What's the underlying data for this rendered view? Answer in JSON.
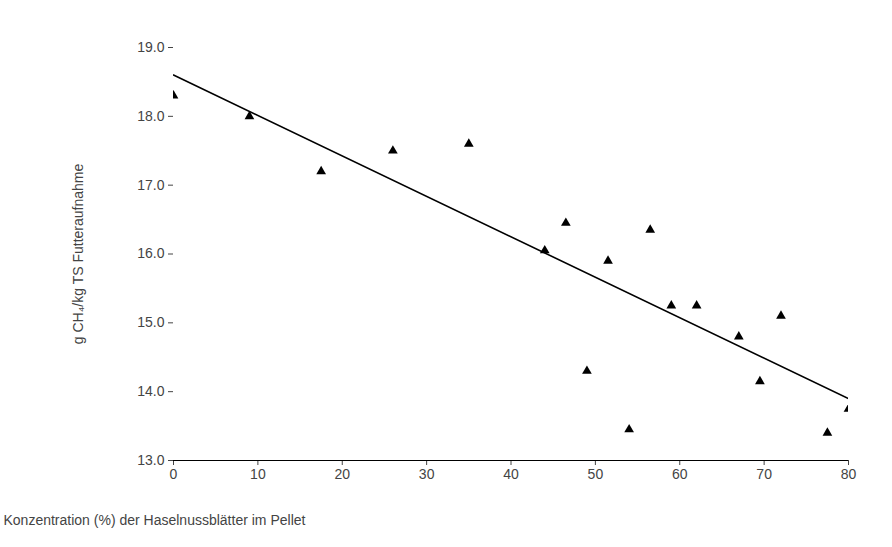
{
  "chart_data": {
    "type": "scatter",
    "xlabel": "Konzentration (%) der Haselnussblätter im Pellet",
    "ylabel": "g CH₄/kg TS Futteraufnahme",
    "xlim": [
      0,
      80
    ],
    "xticks": [
      0,
      10,
      20,
      30,
      40,
      50,
      60,
      70,
      80
    ],
    "ylim": [
      13,
      19
    ],
    "yticks": [
      {
        "value": 13,
        "label": "13.0"
      },
      {
        "value": 14,
        "label": "14.0"
      },
      {
        "value": 15,
        "label": "15.0"
      },
      {
        "value": 16,
        "label": "16.0"
      },
      {
        "value": 17,
        "label": "17.0"
      },
      {
        "value": 18,
        "label": "18.0"
      },
      {
        "value": 19,
        "label": "19.0"
      }
    ],
    "grid": false,
    "series": [
      {
        "type": "scatter",
        "marker": "triangle",
        "color": "#000000",
        "x": [
          0,
          9,
          17.5,
          26,
          35,
          44,
          46.5,
          49,
          51.5,
          54,
          56.5,
          59,
          62,
          67,
          69.5,
          72,
          77.5,
          80
        ],
        "values": [
          18.3,
          18.0,
          17.2,
          17.5,
          17.6,
          16.05,
          16.45,
          14.3,
          15.9,
          13.45,
          16.35,
          15.25,
          15.25,
          14.8,
          14.15,
          15.1,
          13.4,
          13.75
        ]
      },
      {
        "type": "line",
        "line_style": "solid",
        "color": "#000000",
        "x": [
          0,
          80
        ],
        "values": [
          18.6,
          13.9
        ]
      }
    ]
  }
}
